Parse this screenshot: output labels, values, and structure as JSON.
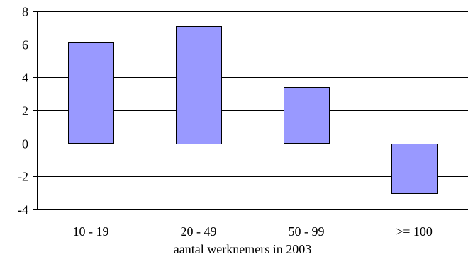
{
  "chart_data": {
    "type": "bar",
    "categories": [
      "10 - 19",
      "20 - 49",
      "50 - 99",
      ">= 100"
    ],
    "values": [
      6.1,
      7.1,
      3.4,
      -3.0
    ],
    "title": "",
    "xlabel": "aantal werknemers in 2003",
    "ylabel": "",
    "ylim": [
      -4,
      8
    ],
    "yticks": [
      8,
      6,
      4,
      2,
      0,
      -2,
      -4
    ],
    "grid": true,
    "bar_color": "#9999ff",
    "bar_border_color": "#000000",
    "legend": "none"
  }
}
